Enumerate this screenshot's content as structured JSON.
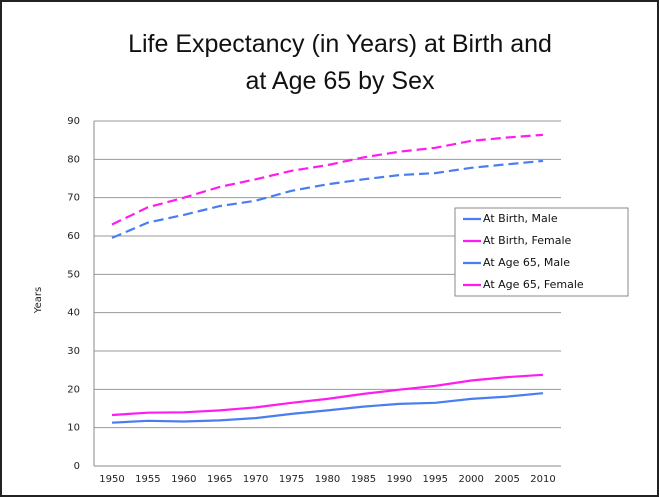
{
  "chart_data": {
    "type": "line",
    "title_lines": [
      "Life Expectancy (in Years) at Birth and",
      "at Age 65 by Sex"
    ],
    "y_label": "Years",
    "categories": [
      "1950",
      "1955",
      "1960",
      "1965",
      "1970",
      "1975",
      "1980",
      "1985",
      "1990",
      "1995",
      "2000",
      "2005",
      "2010"
    ],
    "series": [
      {
        "name": "At Birth, Male",
        "color": "#4a7ef0",
        "dashed": true,
        "values": [
          59.5,
          63.5,
          65.5,
          67.8,
          69.2,
          71.8,
          73.5,
          74.8,
          75.9,
          76.4,
          77.8,
          78.7,
          79.6
        ]
      },
      {
        "name": "At Birth, Female",
        "color": "#ff1cf0",
        "dashed": true,
        "values": [
          63,
          67.5,
          70,
          72.8,
          74.8,
          77,
          78.5,
          80.5,
          82,
          83,
          84.8,
          85.7,
          86.4
        ]
      },
      {
        "name": "At Age 65, Male",
        "color": "#4a7ef0",
        "dashed": false,
        "values": [
          11.3,
          11.8,
          11.6,
          11.9,
          12.5,
          13.6,
          14.5,
          15.5,
          16.2,
          16.5,
          17.5,
          18.1,
          19.0
        ]
      },
      {
        "name": "At Age 65, Female",
        "color": "#ff1cf0",
        "dashed": false,
        "values": [
          13.3,
          13.9,
          14,
          14.5,
          15.3,
          16.5,
          17.5,
          18.8,
          19.9,
          20.9,
          22.3,
          23.2,
          23.8
        ]
      }
    ],
    "ylim": [
      0,
      90
    ],
    "yticks": [
      0,
      10,
      20,
      30,
      40,
      50,
      60,
      70,
      80,
      90
    ],
    "grid": true,
    "legend": "right"
  }
}
